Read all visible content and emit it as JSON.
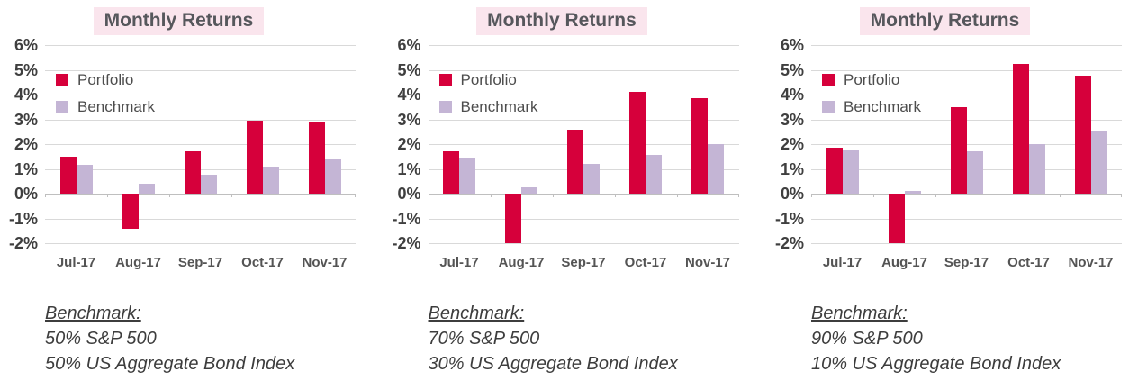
{
  "page": {
    "background": "#FFFFFF"
  },
  "style": {
    "portfolio_color": "#D6003B",
    "benchmark_color": "#C4B5D5",
    "title_bg": "#FAE5ED",
    "title_text": "#56575C",
    "grid_color": "#D9D9D9",
    "axis_color": "#BFBFBF",
    "ylabel_color": "#3F3F3F",
    "xlabel_color": "#545454",
    "note_color": "#3D3D3D"
  },
  "chart_data": [
    {
      "type": "bar",
      "title": "Monthly Returns",
      "categories": [
        "Jul-17",
        "Aug-17",
        "Sep-17",
        "Oct-17",
        "Nov-17"
      ],
      "series": [
        {
          "name": "Portfolio",
          "color": "#D6003B",
          "values": [
            1.5,
            -1.4,
            1.7,
            2.95,
            2.9
          ]
        },
        {
          "name": "Benchmark",
          "color": "#C4B5D5",
          "values": [
            1.15,
            0.4,
            0.75,
            1.1,
            1.4
          ]
        }
      ],
      "xlabel": "",
      "ylabel": "",
      "ylim": [
        -2,
        6
      ],
      "ytick_labels": [
        "6%",
        "5%",
        "4%",
        "3%",
        "2%",
        "1%",
        "0%",
        "-1%",
        "-2%"
      ],
      "grid": true,
      "legend_position": "top-left-inside",
      "footnote": [
        "Benchmark:",
        "50% S&P 500",
        "50% US Aggregate Bond Index"
      ]
    },
    {
      "type": "bar",
      "title": "Monthly Returns",
      "categories": [
        "Jul-17",
        "Aug-17",
        "Sep-17",
        "Oct-17",
        "Nov-17"
      ],
      "series": [
        {
          "name": "Portfolio",
          "color": "#D6003B",
          "values": [
            1.7,
            -2.0,
            2.6,
            4.1,
            3.85
          ]
        },
        {
          "name": "Benchmark",
          "color": "#C4B5D5",
          "values": [
            1.45,
            0.25,
            1.2,
            1.55,
            2.0
          ]
        }
      ],
      "xlabel": "",
      "ylabel": "",
      "ylim": [
        -2,
        6
      ],
      "ytick_labels": [
        "6%",
        "5%",
        "4%",
        "3%",
        "2%",
        "1%",
        "0%",
        "-1%",
        "-2%"
      ],
      "grid": true,
      "legend_position": "top-left-inside",
      "footnote": [
        "Benchmark:",
        "70% S&P 500",
        "30% US Aggregate Bond Index"
      ]
    },
    {
      "type": "bar",
      "title": "Monthly Returns",
      "categories": [
        "Jul-17",
        "Aug-17",
        "Sep-17",
        "Oct-17",
        "Nov-17"
      ],
      "series": [
        {
          "name": "Portfolio",
          "color": "#D6003B",
          "values": [
            1.85,
            -2.0,
            3.5,
            5.25,
            4.75
          ]
        },
        {
          "name": "Benchmark",
          "color": "#C4B5D5",
          "values": [
            1.8,
            0.1,
            1.7,
            2.0,
            2.55
          ]
        }
      ],
      "xlabel": "",
      "ylabel": "",
      "ylim": [
        -2,
        6
      ],
      "ytick_labels": [
        "6%",
        "5%",
        "4%",
        "3%",
        "2%",
        "1%",
        "0%",
        "-1%",
        "-2%"
      ],
      "grid": true,
      "legend_position": "top-left-inside",
      "footnote": [
        "Benchmark:",
        "90% S&P 500",
        "10% US Aggregate Bond Index"
      ]
    }
  ]
}
